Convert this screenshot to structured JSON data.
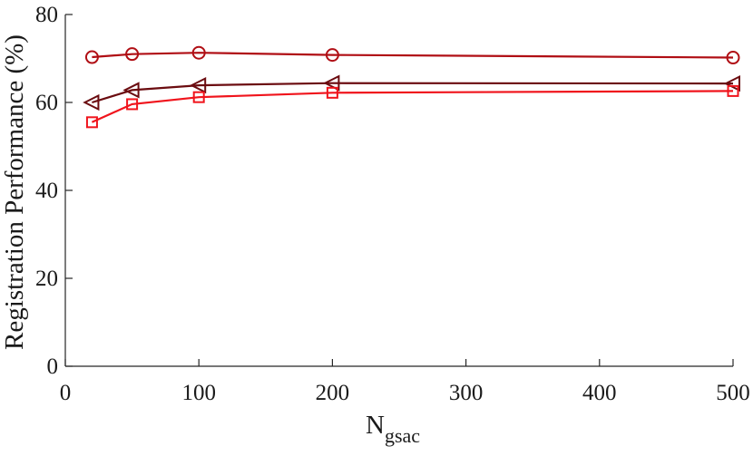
{
  "chart_data": {
    "type": "line",
    "title": "",
    "xlabel": "N",
    "xlabel_subscript": "gsac",
    "ylabel": "Registration Performance (%)",
    "xlim": [
      0,
      500
    ],
    "ylim": [
      0,
      80
    ],
    "xticks": [
      0,
      100,
      200,
      300,
      400,
      500
    ],
    "yticks": [
      0,
      20,
      40,
      60,
      80
    ],
    "grid": false,
    "legend": "none",
    "x": [
      20,
      50,
      100,
      200,
      500
    ],
    "series": [
      {
        "marker": "circle",
        "color": "#b00e14",
        "values": [
          70.3,
          71.0,
          71.3,
          70.8,
          70.2
        ]
      },
      {
        "marker": "triangle-left",
        "color": "#6b0c10",
        "values": [
          60.0,
          62.8,
          63.9,
          64.4,
          64.3
        ]
      },
      {
        "marker": "square",
        "color": "#f0141c",
        "values": [
          55.5,
          59.6,
          61.2,
          62.2,
          62.6
        ]
      }
    ]
  }
}
